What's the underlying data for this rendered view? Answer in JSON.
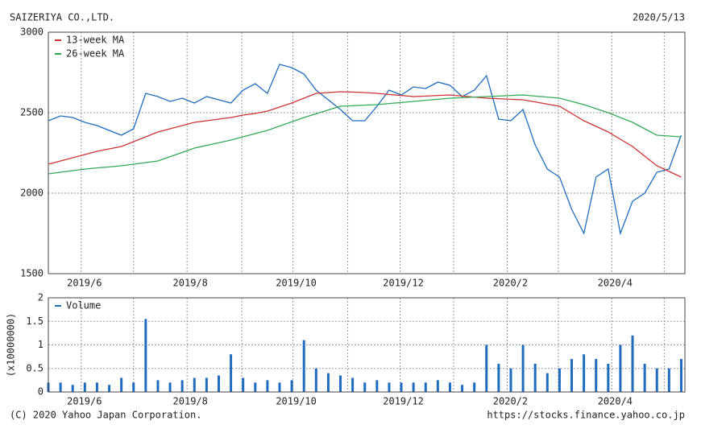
{
  "header": {
    "title": "SAIZERIYA CO.,LTD.",
    "date": "2020/5/13"
  },
  "footer": {
    "copyright": "(C) 2020 Yahoo Japan Corporation.",
    "url": "https://stocks.finance.yahoo.co.jp"
  },
  "chart_data": [
    {
      "type": "line",
      "x": [
        0,
        1,
        2,
        3,
        4,
        5,
        6,
        7,
        8,
        9,
        10,
        11,
        12,
        13,
        14,
        15,
        16,
        17,
        18,
        19,
        20,
        21,
        22,
        23,
        24,
        25,
        26,
        27,
        28,
        29,
        30,
        31,
        32,
        33,
        34,
        35,
        36,
        37,
        38,
        39,
        40,
        41,
        42,
        43,
        44,
        45,
        46,
        47,
        48,
        49,
        50,
        51,
        52
      ],
      "series": [
        {
          "color": "#1f6cbf",
          "values": [
            2450,
            2480,
            2470,
            2440,
            2420,
            2390,
            2360,
            2400,
            2620,
            2600,
            2570,
            2590,
            2560,
            2600,
            2580,
            2560,
            2640,
            2680,
            2620,
            2800,
            2780,
            2740,
            2640,
            2580,
            2520,
            2450,
            2450,
            2540,
            2640,
            2610,
            2660,
            2650,
            2690,
            2670,
            2600,
            2640,
            2730,
            2460,
            2450,
            2520,
            2300,
            2150,
            2100,
            1900,
            1750,
            2100,
            2150,
            1750,
            1950,
            2000,
            2130,
            2150,
            2360
          ]
        },
        {
          "name": "13-week MA",
          "color": "#cc3333",
          "values": [
            2180,
            2200,
            2220,
            2240,
            2260,
            2275,
            2290,
            2320,
            2350,
            2380,
            2400,
            2420,
            2440,
            2450,
            2460,
            2470,
            2485,
            2495,
            2510,
            2535,
            2560,
            2590,
            2620,
            2625,
            2630,
            2628,
            2625,
            2620,
            2613,
            2607,
            2600,
            2603,
            2607,
            2610,
            2603,
            2597,
            2590,
            2587,
            2583,
            2580,
            2567,
            2553,
            2540,
            2495,
            2450,
            2415,
            2380,
            2335,
            2290,
            2230,
            2170,
            2135,
            2100
          ]
        },
        {
          "name": "26-week MA",
          "color": "#33aa55",
          "values": [
            2120,
            2130,
            2140,
            2150,
            2157,
            2163,
            2170,
            2180,
            2190,
            2200,
            2227,
            2253,
            2280,
            2297,
            2313,
            2330,
            2350,
            2370,
            2390,
            2417,
            2443,
            2470,
            2493,
            2517,
            2540,
            2543,
            2547,
            2550,
            2557,
            2563,
            2570,
            2577,
            2583,
            2590,
            2593,
            2597,
            2600,
            2603,
            2607,
            2610,
            2603,
            2597,
            2590,
            2570,
            2550,
            2525,
            2500,
            2470,
            2440,
            2400,
            2360,
            2355,
            2350
          ]
        }
      ],
      "xlim": [
        0,
        52.3
      ],
      "xticks": [
        {
          "value": 2.7,
          "label": "2019/6"
        },
        {
          "value": 7.0,
          "label": null
        },
        {
          "value": 11.4,
          "label": "2019/8"
        },
        {
          "value": 15.9,
          "label": null
        },
        {
          "value": 20.1,
          "label": "2019/10"
        },
        {
          "value": 24.6,
          "label": null
        },
        {
          "value": 28.9,
          "label": "2019/12"
        },
        {
          "value": 33.3,
          "label": null
        },
        {
          "value": 37.7,
          "label": "2020/2"
        },
        {
          "value": 41.9,
          "label": null
        },
        {
          "value": 46.3,
          "label": "2020/4"
        },
        {
          "value": 50.6,
          "label": null
        }
      ],
      "ylim": [
        1500,
        3000
      ],
      "yticks": [
        1500,
        2000,
        2500,
        3000
      ],
      "grid": true
    },
    {
      "type": "bar",
      "x": [
        0,
        1,
        2,
        3,
        4,
        5,
        6,
        7,
        8,
        9,
        10,
        11,
        12,
        13,
        14,
        15,
        16,
        17,
        18,
        19,
        20,
        21,
        22,
        23,
        24,
        25,
        26,
        27,
        28,
        29,
        30,
        31,
        32,
        33,
        34,
        35,
        36,
        37,
        38,
        39,
        40,
        41,
        42,
        43,
        44,
        45,
        46,
        47,
        48,
        49,
        50,
        51,
        52
      ],
      "y_label": "(x10000000)",
      "series": [
        {
          "name": "Volume",
          "color": "#1f6cbf",
          "values": [
            0.2,
            0.2,
            0.15,
            0.2,
            0.2,
            0.15,
            0.3,
            0.2,
            1.55,
            0.25,
            0.2,
            0.25,
            0.3,
            0.3,
            0.35,
            0.8,
            0.3,
            0.2,
            0.25,
            0.2,
            0.25,
            1.1,
            0.5,
            0.4,
            0.35,
            0.3,
            0.2,
            0.25,
            0.2,
            0.2,
            0.2,
            0.2,
            0.25,
            0.2,
            0.15,
            0.2,
            1.0,
            0.6,
            0.5,
            1.0,
            0.6,
            0.4,
            0.5,
            0.7,
            0.8,
            0.7,
            0.6,
            1.0,
            1.2,
            0.6,
            0.5,
            0.5,
            0.7
          ]
        }
      ],
      "xlim": [
        0,
        52.3
      ],
      "xticks": [
        {
          "value": 2.7,
          "label": "2019/6"
        },
        {
          "value": 7.0,
          "label": null
        },
        {
          "value": 11.4,
          "label": "2019/8"
        },
        {
          "value": 15.9,
          "label": null
        },
        {
          "value": 20.1,
          "label": "2019/10"
        },
        {
          "value": 24.6,
          "label": null
        },
        {
          "value": 28.9,
          "label": "2019/12"
        },
        {
          "value": 33.3,
          "label": null
        },
        {
          "value": 37.7,
          "label": "2020/2"
        },
        {
          "value": 41.9,
          "label": null
        },
        {
          "value": 46.3,
          "label": "2020/4"
        },
        {
          "value": 50.6,
          "label": null
        }
      ],
      "ylim": [
        0,
        2
      ],
      "yticks": [
        0,
        0.5,
        1,
        1.5,
        2
      ],
      "grid": true
    }
  ]
}
